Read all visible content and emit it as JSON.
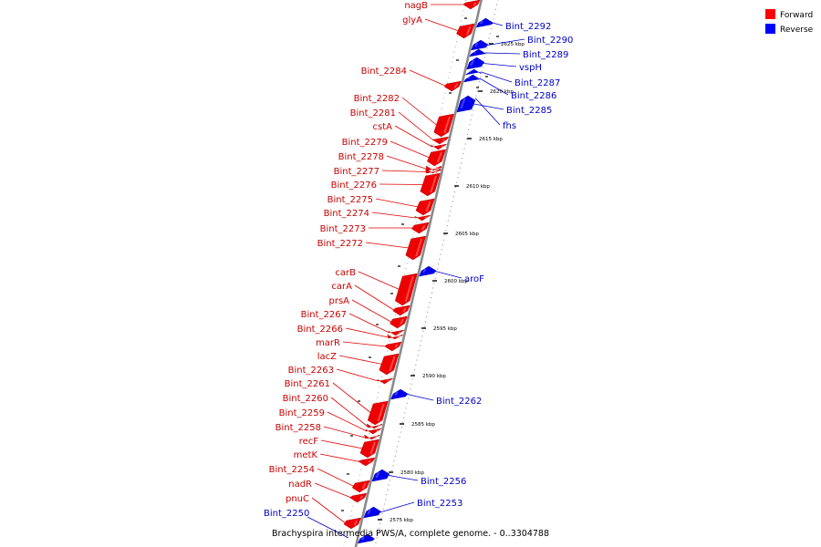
{
  "caption": "Brachyspira intermedia PWS/A, complete genome. - 0..3304788",
  "legend": [
    {
      "label": "Forward",
      "color": "#ff0000"
    },
    {
      "label": "Reverse",
      "color": "#0000ff"
    }
  ],
  "colors": {
    "forward_fill": "#ee0000",
    "reverse_fill": "#0000ee",
    "forward_text": "#c80000",
    "reverse_text": "#0000c8",
    "axis": "#888888"
  },
  "scale_ticks": [
    "2625 kbp",
    "2620 kbp",
    "2615 kbp",
    "2610 kbp",
    "2605 kbp",
    "2600 kbp",
    "2595 kbp",
    "2590 kbp",
    "2585 kbp",
    "2580 kbp",
    "2575 kbp"
  ],
  "forward_genes": [
    "nagB",
    "glyA",
    "Bint_2284",
    "Bint_2282",
    "Bint_2281",
    "cstA",
    "Bint_2279",
    "Bint_2278",
    "Bint_2277",
    "Bint_2276",
    "Bint_2275",
    "Bint_2274",
    "Bint_2273",
    "Bint_2272",
    "carB",
    "carA",
    "prsA",
    "Bint_2267",
    "Bint_2266",
    "marR",
    "lacZ",
    "Bint_2263",
    "Bint_2261",
    "Bint_2260",
    "Bint_2259",
    "Bint_2258",
    "recF",
    "metK",
    "Bint_2254",
    "nadR",
    "pnuC"
  ],
  "reverse_genes": [
    "Bint_2292",
    "Bint_2290",
    "Bint_2289",
    "vspH",
    "Bint_2287",
    "Bint_2286",
    "Bint_2285",
    "fhs",
    "aroF",
    "Bint_2262",
    "Bint_2256",
    "Bint_2253",
    "Bint_2250"
  ]
}
